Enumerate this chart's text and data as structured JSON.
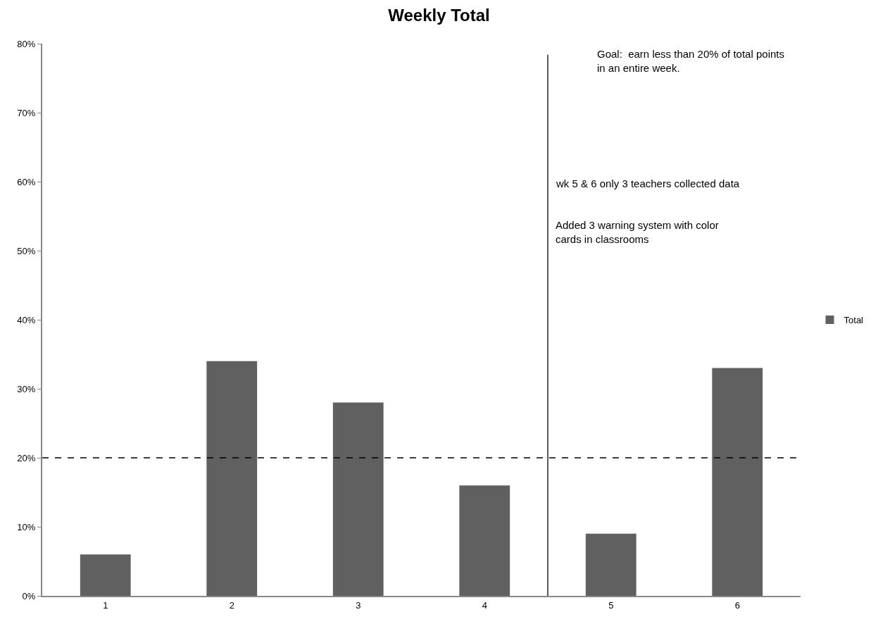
{
  "chart_data": {
    "type": "bar",
    "title": "Weekly Total",
    "x": [
      1,
      2,
      3,
      4,
      5,
      6
    ],
    "series": [
      {
        "name": "Total",
        "color": "#606060",
        "values": [
          6,
          34,
          28,
          16,
          9,
          33
        ]
      }
    ],
    "xlim": [
      0.5,
      6.5
    ],
    "xticks": [
      1,
      2,
      3,
      4,
      5,
      6
    ],
    "ylim": [
      0,
      80
    ],
    "yticks": [
      {
        "value": 0,
        "label": "0%"
      },
      {
        "value": 10,
        "label": "10%"
      },
      {
        "value": 20,
        "label": "20%"
      },
      {
        "value": 30,
        "label": "30%"
      },
      {
        "value": 40,
        "label": "40%"
      },
      {
        "value": 50,
        "label": "50%"
      },
      {
        "value": 60,
        "label": "60%"
      },
      {
        "value": 70,
        "label": "70%"
      },
      {
        "value": 80,
        "label": "80%"
      }
    ],
    "ref_lines": [
      {
        "axis": "y",
        "value": 20,
        "color": "#000000",
        "line_style": "dashed"
      },
      {
        "axis": "x",
        "value": 4.5,
        "color": "#000000",
        "line_style": "solid"
      }
    ],
    "annotations": [
      "Goal:  earn less than 20% of total points\nin an entire week.",
      "wk 5 & 6 only 3 teachers collected data",
      "Added 3 warning system with color\ncards in classrooms"
    ],
    "legend": "right"
  }
}
